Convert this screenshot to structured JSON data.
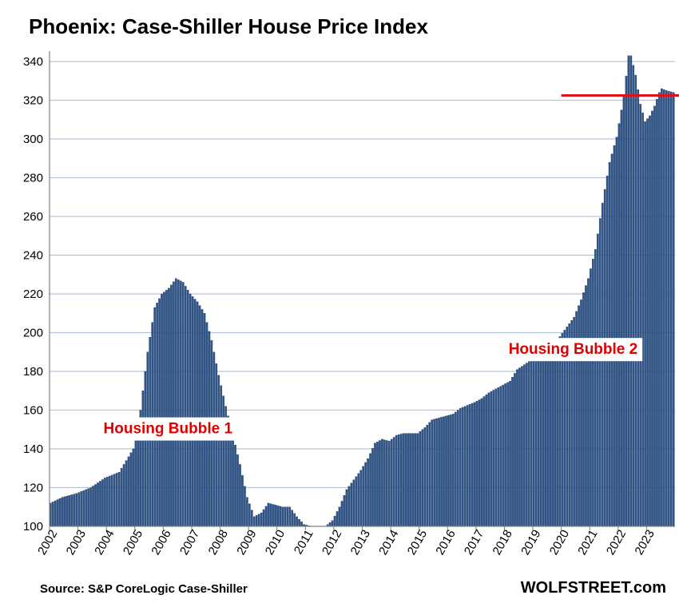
{
  "header": {
    "title": "Phoenix: Case-Shiller House Price Index"
  },
  "footer": {
    "source": "Source: S&P CoreLogic Case-Shiller",
    "brand": "WOLFSTREET.com"
  },
  "colors": {
    "bar": "#2f5589",
    "bar_edge": "#1d3a63",
    "grid": "#b7c4d6",
    "reference_line": "#e0101a",
    "annotation": "#e00000"
  },
  "chart_data": {
    "type": "bar",
    "title": "Phoenix: Case-Shiller House Price Index",
    "xlabel": "",
    "ylabel": "",
    "x_start": "2002-01",
    "x_end": "2023-12",
    "frequency": "monthly",
    "ylim": [
      100,
      340
    ],
    "y_ticks": [
      100,
      120,
      140,
      160,
      180,
      200,
      220,
      240,
      260,
      280,
      300,
      320,
      340
    ],
    "x_tick_labels": [
      "2002",
      "2003",
      "2004",
      "2005",
      "2006",
      "2007",
      "2008",
      "2009",
      "2010",
      "2011",
      "2012",
      "2013",
      "2014",
      "2015",
      "2016",
      "2017",
      "2018",
      "2019",
      "2020",
      "2021",
      "2022",
      "2023"
    ],
    "grid": true,
    "anchors": [
      [
        "2002-01",
        112
      ],
      [
        "2002-06",
        115
      ],
      [
        "2002-12",
        117
      ],
      [
        "2003-06",
        120
      ],
      [
        "2003-12",
        125
      ],
      [
        "2004-06",
        128
      ],
      [
        "2004-12",
        140
      ],
      [
        "2005-03",
        160
      ],
      [
        "2005-06",
        190
      ],
      [
        "2005-09",
        213
      ],
      [
        "2005-12",
        220
      ],
      [
        "2006-03",
        223
      ],
      [
        "2006-06",
        228
      ],
      [
        "2006-09",
        226
      ],
      [
        "2006-12",
        220
      ],
      [
        "2007-03",
        216
      ],
      [
        "2007-06",
        210
      ],
      [
        "2007-09",
        196
      ],
      [
        "2007-12",
        178
      ],
      [
        "2008-03",
        162
      ],
      [
        "2008-06",
        147
      ],
      [
        "2008-09",
        132
      ],
      [
        "2008-12",
        115
      ],
      [
        "2009-03",
        105
      ],
      [
        "2009-06",
        107
      ],
      [
        "2009-09",
        112
      ],
      [
        "2009-12",
        111
      ],
      [
        "2010-03",
        110
      ],
      [
        "2010-06",
        110
      ],
      [
        "2010-09",
        105
      ],
      [
        "2010-12",
        101
      ],
      [
        "2011-03",
        100
      ],
      [
        "2011-06",
        100
      ],
      [
        "2011-09",
        100
      ],
      [
        "2011-12",
        103
      ],
      [
        "2012-03",
        110
      ],
      [
        "2012-06",
        119
      ],
      [
        "2012-09",
        124
      ],
      [
        "2012-12",
        129
      ],
      [
        "2013-03",
        135
      ],
      [
        "2013-06",
        143
      ],
      [
        "2013-09",
        145
      ],
      [
        "2013-12",
        144
      ],
      [
        "2014-03",
        147
      ],
      [
        "2014-06",
        148
      ],
      [
        "2014-12",
        148
      ],
      [
        "2015-03",
        151
      ],
      [
        "2015-06",
        155
      ],
      [
        "2015-12",
        157
      ],
      [
        "2016-03",
        158
      ],
      [
        "2016-06",
        161
      ],
      [
        "2016-12",
        164
      ],
      [
        "2017-03",
        166
      ],
      [
        "2017-06",
        169
      ],
      [
        "2017-12",
        173
      ],
      [
        "2018-03",
        175
      ],
      [
        "2018-06",
        181
      ],
      [
        "2018-12",
        186
      ],
      [
        "2019-06",
        192
      ],
      [
        "2019-12",
        198
      ],
      [
        "2020-03",
        203
      ],
      [
        "2020-06",
        208
      ],
      [
        "2020-09",
        217
      ],
      [
        "2020-12",
        228
      ],
      [
        "2021-03",
        243
      ],
      [
        "2021-06",
        267
      ],
      [
        "2021-09",
        288
      ],
      [
        "2021-12",
        301
      ],
      [
        "2022-03",
        322
      ],
      [
        "2022-05",
        343
      ],
      [
        "2022-06",
        343
      ],
      [
        "2022-08",
        333
      ],
      [
        "2022-10",
        318
      ],
      [
        "2022-12",
        309
      ],
      [
        "2023-02",
        312
      ],
      [
        "2023-04",
        317
      ],
      [
        "2023-06",
        324
      ],
      [
        "2023-07",
        326
      ],
      [
        "2023-09",
        325
      ],
      [
        "2023-12",
        324
      ]
    ],
    "reference_line": {
      "y": 322.5,
      "from": "2020-01",
      "to": "2023-12"
    },
    "annotations": [
      {
        "text": "Housing Bubble 1",
        "x": "2006-03",
        "y": 148
      },
      {
        "text": "Housing Bubble 2",
        "x": "2020-06",
        "y": 189
      }
    ]
  }
}
